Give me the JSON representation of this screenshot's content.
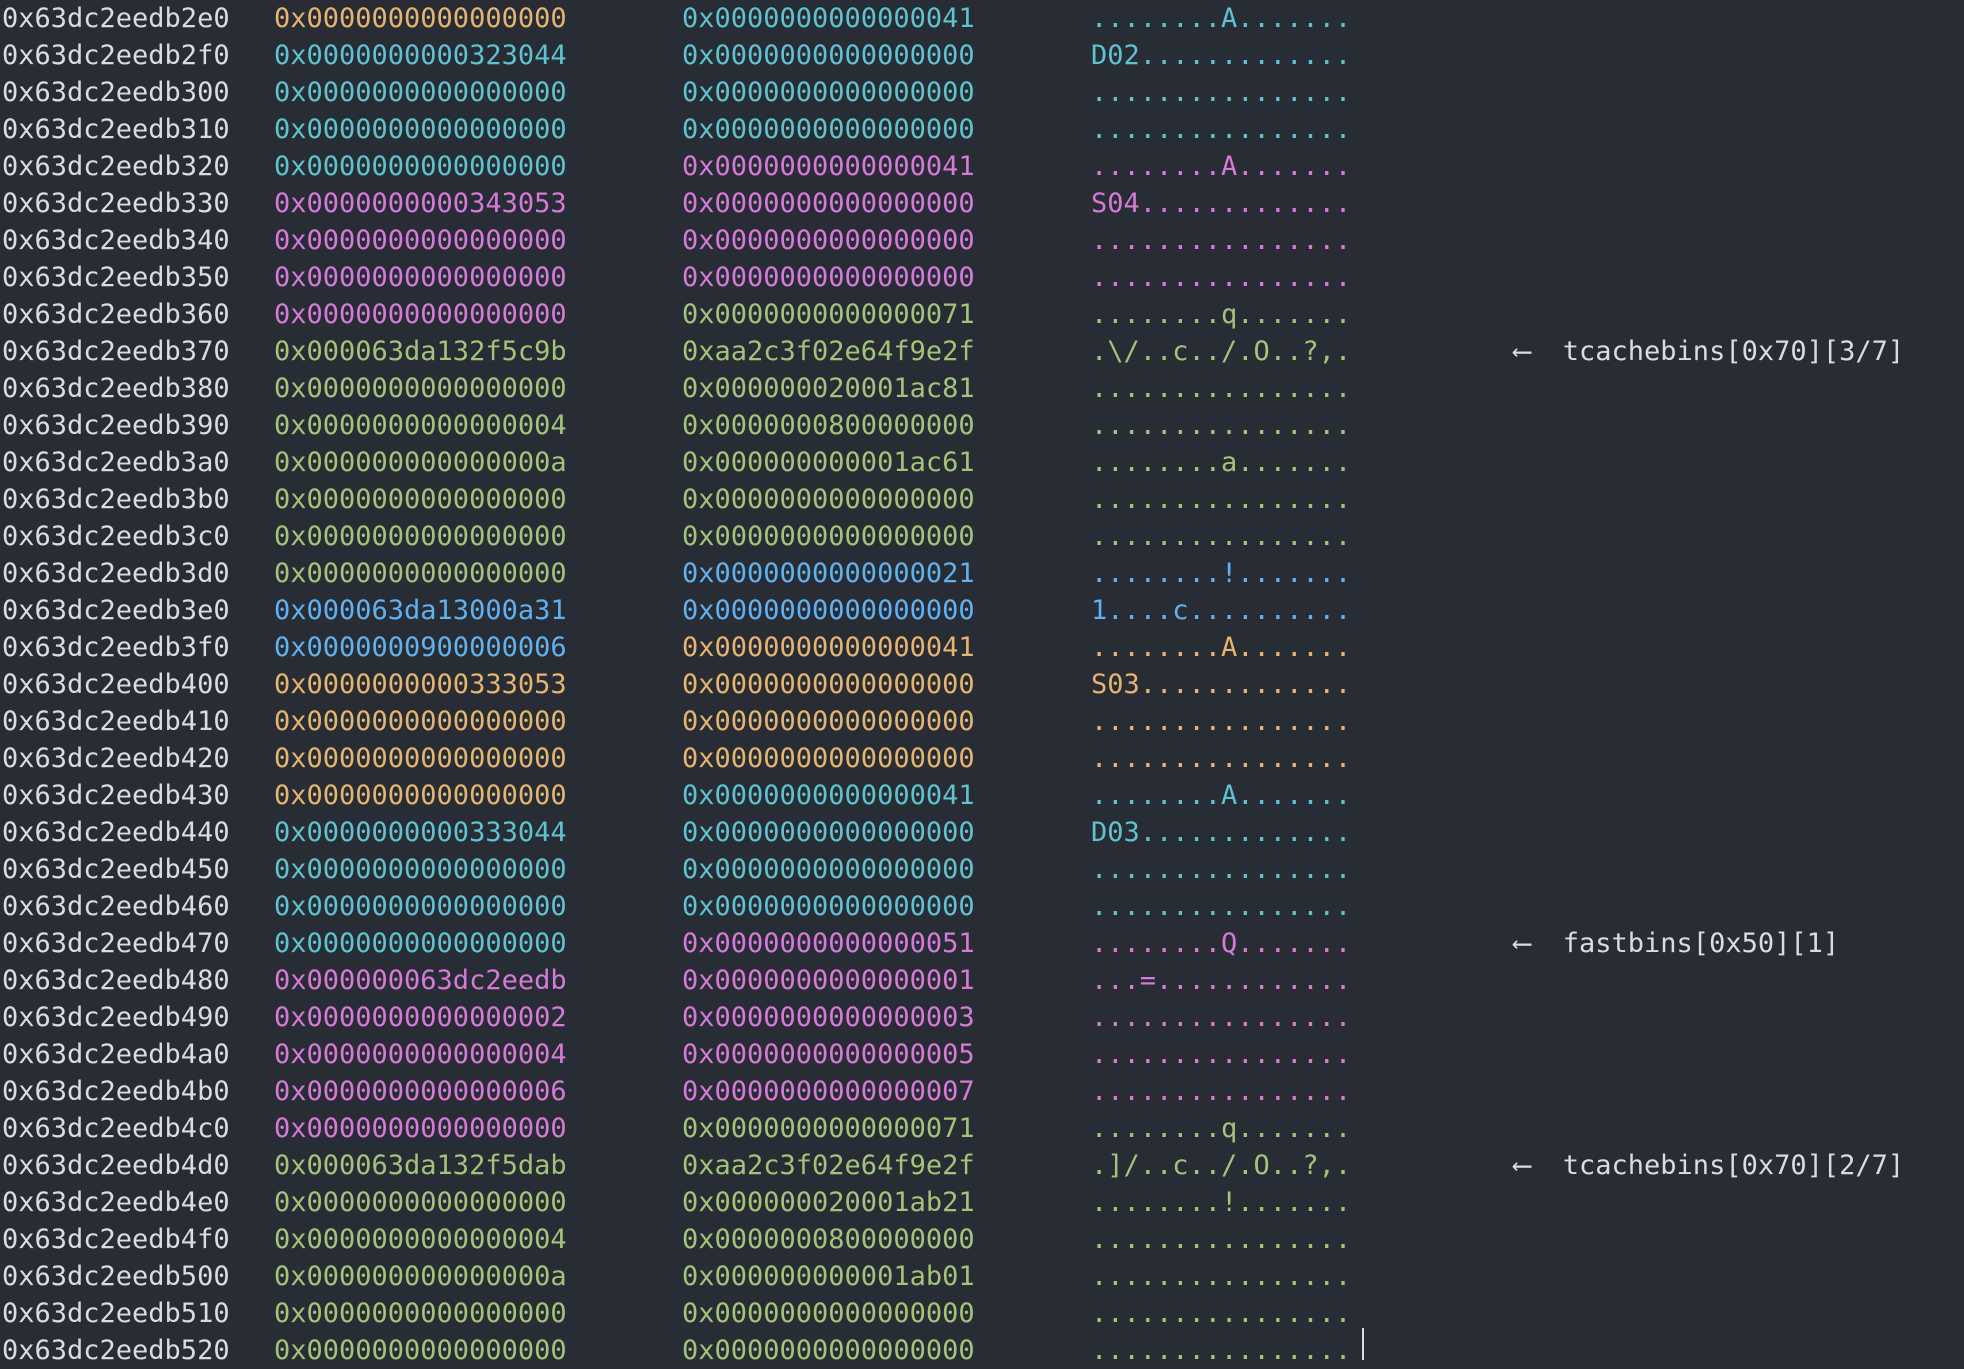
{
  "colors": {
    "background": "#282c34",
    "default": "#d9dce1",
    "orange": "#e5b46f",
    "cyan": "#5ec3cf",
    "magenta": "#d67ad8",
    "green": "#a3c37a",
    "blue": "#60b1ee"
  },
  "rows": [
    {
      "addr": "0x63dc2eedb2e0",
      "v1": "0x0000000000000000",
      "c1": "org",
      "v2": "0x0000000000000041",
      "c2": "cyn",
      "ascii": "........A.......",
      "c3": "cyn",
      "ann": ""
    },
    {
      "addr": "0x63dc2eedb2f0",
      "v1": "0x0000000000323044",
      "c1": "cyn",
      "v2": "0x0000000000000000",
      "c2": "cyn",
      "ascii": "D02.............",
      "c3": "cyn",
      "ann": ""
    },
    {
      "addr": "0x63dc2eedb300",
      "v1": "0x0000000000000000",
      "c1": "cyn",
      "v2": "0x0000000000000000",
      "c2": "cyn",
      "ascii": "................",
      "c3": "cyn",
      "ann": ""
    },
    {
      "addr": "0x63dc2eedb310",
      "v1": "0x0000000000000000",
      "c1": "cyn",
      "v2": "0x0000000000000000",
      "c2": "cyn",
      "ascii": "................",
      "c3": "cyn",
      "ann": ""
    },
    {
      "addr": "0x63dc2eedb320",
      "v1": "0x0000000000000000",
      "c1": "cyn",
      "v2": "0x0000000000000041",
      "c2": "mag",
      "ascii": "........A.......",
      "c3": "mag",
      "ann": ""
    },
    {
      "addr": "0x63dc2eedb330",
      "v1": "0x0000000000343053",
      "c1": "mag",
      "v2": "0x0000000000000000",
      "c2": "mag",
      "ascii": "S04.............",
      "c3": "mag",
      "ann": ""
    },
    {
      "addr": "0x63dc2eedb340",
      "v1": "0x0000000000000000",
      "c1": "mag",
      "v2": "0x0000000000000000",
      "c2": "mag",
      "ascii": "................",
      "c3": "mag",
      "ann": ""
    },
    {
      "addr": "0x63dc2eedb350",
      "v1": "0x0000000000000000",
      "c1": "mag",
      "v2": "0x0000000000000000",
      "c2": "mag",
      "ascii": "................",
      "c3": "mag",
      "ann": ""
    },
    {
      "addr": "0x63dc2eedb360",
      "v1": "0x0000000000000000",
      "c1": "mag",
      "v2": "0x0000000000000071",
      "c2": "grn",
      "ascii": "........q.......",
      "c3": "grn",
      "ann": ""
    },
    {
      "addr": "0x63dc2eedb370",
      "v1": "0x000063da132f5c9b",
      "c1": "grn",
      "v2": "0xaa2c3f02e64f9e2f",
      "c2": "grn",
      "ascii": ".\\/..c../.O..?,.",
      "c3": "grn",
      "ann": "⟵  tcachebins[0x70][3/7]"
    },
    {
      "addr": "0x63dc2eedb380",
      "v1": "0x0000000000000000",
      "c1": "grn",
      "v2": "0x000000020001ac81",
      "c2": "grn",
      "ascii": "................",
      "c3": "grn",
      "ann": ""
    },
    {
      "addr": "0x63dc2eedb390",
      "v1": "0x0000000000000004",
      "c1": "grn",
      "v2": "0x0000000800000000",
      "c2": "grn",
      "ascii": "................",
      "c3": "grn",
      "ann": ""
    },
    {
      "addr": "0x63dc2eedb3a0",
      "v1": "0x000000000000000a",
      "c1": "grn",
      "v2": "0x000000000001ac61",
      "c2": "grn",
      "ascii": "........a.......",
      "c3": "grn",
      "ann": ""
    },
    {
      "addr": "0x63dc2eedb3b0",
      "v1": "0x0000000000000000",
      "c1": "grn",
      "v2": "0x0000000000000000",
      "c2": "grn",
      "ascii": "................",
      "c3": "grn",
      "ann": ""
    },
    {
      "addr": "0x63dc2eedb3c0",
      "v1": "0x0000000000000000",
      "c1": "grn",
      "v2": "0x0000000000000000",
      "c2": "grn",
      "ascii": "................",
      "c3": "grn",
      "ann": ""
    },
    {
      "addr": "0x63dc2eedb3d0",
      "v1": "0x0000000000000000",
      "c1": "grn",
      "v2": "0x0000000000000021",
      "c2": "blu",
      "ascii": "........!.......",
      "c3": "blu",
      "ann": ""
    },
    {
      "addr": "0x63dc2eedb3e0",
      "v1": "0x000063da13000a31",
      "c1": "blu",
      "v2": "0x0000000000000000",
      "c2": "blu",
      "ascii": "1....c..........",
      "c3": "blu",
      "ann": ""
    },
    {
      "addr": "0x63dc2eedb3f0",
      "v1": "0x0000000900000006",
      "c1": "blu",
      "v2": "0x0000000000000041",
      "c2": "org",
      "ascii": "........A.......",
      "c3": "org",
      "ann": ""
    },
    {
      "addr": "0x63dc2eedb400",
      "v1": "0x0000000000333053",
      "c1": "org",
      "v2": "0x0000000000000000",
      "c2": "org",
      "ascii": "S03.............",
      "c3": "org",
      "ann": ""
    },
    {
      "addr": "0x63dc2eedb410",
      "v1": "0x0000000000000000",
      "c1": "org",
      "v2": "0x0000000000000000",
      "c2": "org",
      "ascii": "................",
      "c3": "org",
      "ann": ""
    },
    {
      "addr": "0x63dc2eedb420",
      "v1": "0x0000000000000000",
      "c1": "org",
      "v2": "0x0000000000000000",
      "c2": "org",
      "ascii": "................",
      "c3": "org",
      "ann": ""
    },
    {
      "addr": "0x63dc2eedb430",
      "v1": "0x0000000000000000",
      "c1": "org",
      "v2": "0x0000000000000041",
      "c2": "cyn",
      "ascii": "........A.......",
      "c3": "cyn",
      "ann": ""
    },
    {
      "addr": "0x63dc2eedb440",
      "v1": "0x0000000000333044",
      "c1": "cyn",
      "v2": "0x0000000000000000",
      "c2": "cyn",
      "ascii": "D03.............",
      "c3": "cyn",
      "ann": ""
    },
    {
      "addr": "0x63dc2eedb450",
      "v1": "0x0000000000000000",
      "c1": "cyn",
      "v2": "0x0000000000000000",
      "c2": "cyn",
      "ascii": "................",
      "c3": "cyn",
      "ann": ""
    },
    {
      "addr": "0x63dc2eedb460",
      "v1": "0x0000000000000000",
      "c1": "cyn",
      "v2": "0x0000000000000000",
      "c2": "cyn",
      "ascii": "................",
      "c3": "cyn",
      "ann": ""
    },
    {
      "addr": "0x63dc2eedb470",
      "v1": "0x0000000000000000",
      "c1": "cyn",
      "v2": "0x0000000000000051",
      "c2": "mag",
      "ascii": "........Q.......",
      "c3": "mag",
      "ann": "⟵  fastbins[0x50][1]"
    },
    {
      "addr": "0x63dc2eedb480",
      "v1": "0x000000063dc2eedb",
      "c1": "mag",
      "v2": "0x0000000000000001",
      "c2": "mag",
      "ascii": "...=............",
      "c3": "mag",
      "ann": ""
    },
    {
      "addr": "0x63dc2eedb490",
      "v1": "0x0000000000000002",
      "c1": "mag",
      "v2": "0x0000000000000003",
      "c2": "mag",
      "ascii": "................",
      "c3": "mag",
      "ann": ""
    },
    {
      "addr": "0x63dc2eedb4a0",
      "v1": "0x0000000000000004",
      "c1": "mag",
      "v2": "0x0000000000000005",
      "c2": "mag",
      "ascii": "................",
      "c3": "mag",
      "ann": ""
    },
    {
      "addr": "0x63dc2eedb4b0",
      "v1": "0x0000000000000006",
      "c1": "mag",
      "v2": "0x0000000000000007",
      "c2": "mag",
      "ascii": "................",
      "c3": "mag",
      "ann": ""
    },
    {
      "addr": "0x63dc2eedb4c0",
      "v1": "0x0000000000000000",
      "c1": "mag",
      "v2": "0x0000000000000071",
      "c2": "grn",
      "ascii": "........q.......",
      "c3": "grn",
      "ann": ""
    },
    {
      "addr": "0x63dc2eedb4d0",
      "v1": "0x000063da132f5dab",
      "c1": "grn",
      "v2": "0xaa2c3f02e64f9e2f",
      "c2": "grn",
      "ascii": ".]/..c../.O..?,.",
      "c3": "grn",
      "ann": "⟵  tcachebins[0x70][2/7]"
    },
    {
      "addr": "0x63dc2eedb4e0",
      "v1": "0x0000000000000000",
      "c1": "grn",
      "v2": "0x000000020001ab21",
      "c2": "grn",
      "ascii": "........!.......",
      "c3": "grn",
      "ann": ""
    },
    {
      "addr": "0x63dc2eedb4f0",
      "v1": "0x0000000000000004",
      "c1": "grn",
      "v2": "0x0000000800000000",
      "c2": "grn",
      "ascii": "................",
      "c3": "grn",
      "ann": ""
    },
    {
      "addr": "0x63dc2eedb500",
      "v1": "0x000000000000000a",
      "c1": "grn",
      "v2": "0x000000000001ab01",
      "c2": "grn",
      "ascii": "................",
      "c3": "grn",
      "ann": ""
    },
    {
      "addr": "0x63dc2eedb510",
      "v1": "0x0000000000000000",
      "c1": "grn",
      "v2": "0x0000000000000000",
      "c2": "grn",
      "ascii": "................",
      "c3": "grn",
      "ann": ""
    },
    {
      "addr": "0x63dc2eedb520",
      "v1": "0x0000000000000000",
      "c1": "grn",
      "v2": "0x0000000000000000",
      "c2": "grn",
      "ascii": "................",
      "c3": "grn",
      "ann": ""
    }
  ]
}
